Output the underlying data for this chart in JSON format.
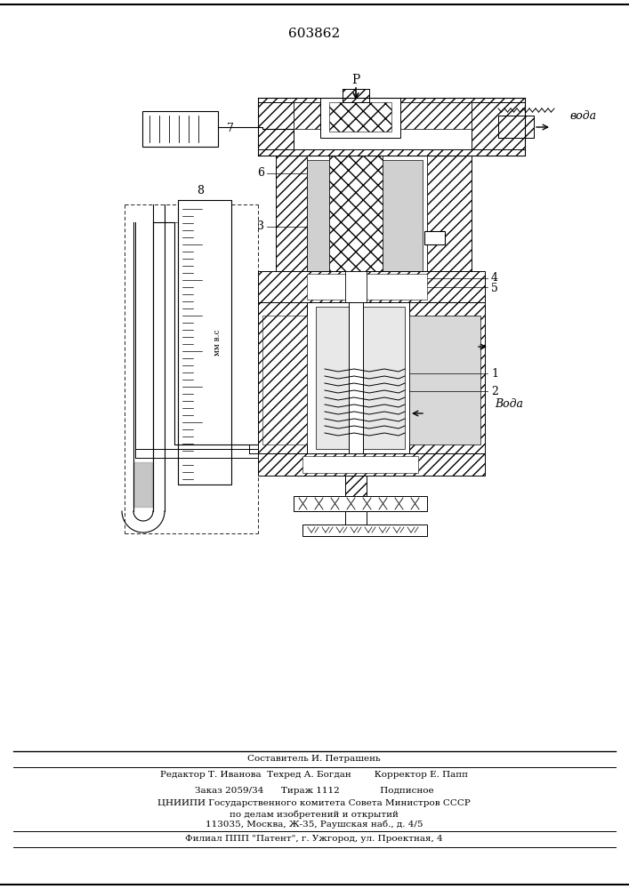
{
  "patent_number": "603862",
  "bg_color": "#ffffff",
  "footer_lines": [
    "Составитель И. Петрашень",
    "Редактор Т. Иванова  Техред А. Богдан        Корректор Е. Папп",
    "Заказ 2059/34      Тираж 1112              Подписное",
    "ЦНИИПИ Государственного комитета Совета Министров СССР",
    "по делам изобретений и открытий",
    "113035, Москва, Ж-35, Раушская наб., д. 4/5",
    "Филиал ППП \"Патент\", г. Ужгород, ул. Проектная, 4"
  ]
}
